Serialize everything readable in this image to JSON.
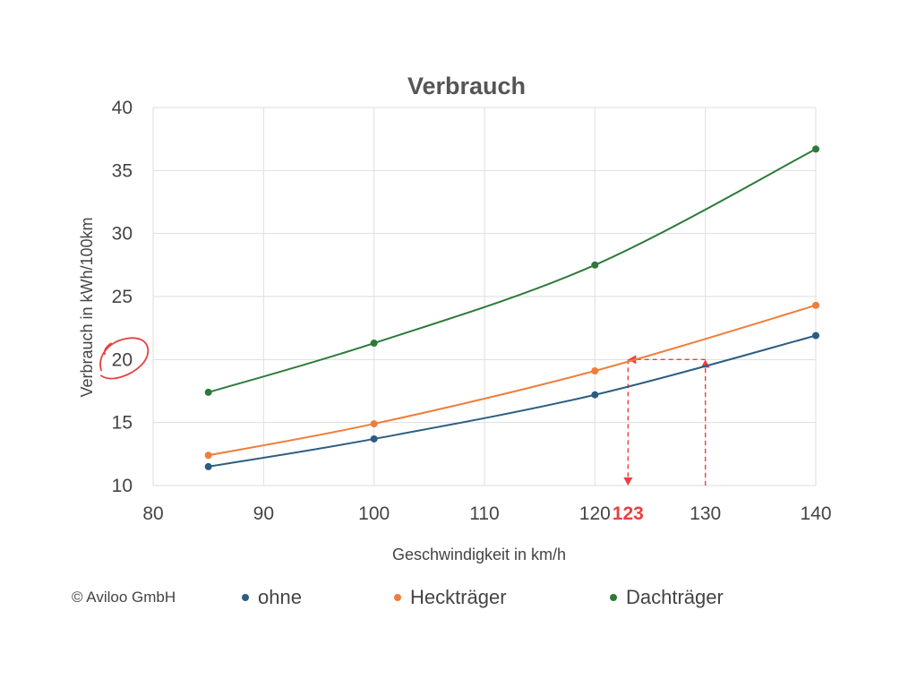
{
  "chart_data": {
    "type": "line",
    "title": "Verbrauch",
    "xlabel": "Geschwindigkeit in km/h",
    "ylabel": "Verbrauch in kWh/100km",
    "xlim": [
      80,
      140
    ],
    "ylim": [
      10,
      40
    ],
    "xticks": [
      80,
      90,
      100,
      110,
      120,
      130,
      140
    ],
    "yticks": [
      10,
      15,
      20,
      25,
      30,
      35,
      40
    ],
    "grid": true,
    "legend_position": "bottom",
    "x": [
      85,
      100,
      120,
      140
    ],
    "series": [
      {
        "name": "ohne",
        "color": "#2b5d82",
        "values": [
          11.5,
          13.7,
          17.2,
          21.9
        ]
      },
      {
        "name": "Heckträger",
        "color": "#ef7d3b",
        "values": [
          12.4,
          14.9,
          19.1,
          24.3
        ]
      },
      {
        "name": "Dachträger",
        "color": "#2c7a39",
        "values": [
          17.4,
          21.3,
          27.5,
          36.7
        ]
      }
    ],
    "annotations": {
      "highlight_y_tick": 20,
      "callout_color": "#e8403f",
      "callout_value_label": "123",
      "callout_y": 20,
      "callout_x_heckträger": 123,
      "callout_x_ohne": 130
    }
  },
  "footer": {
    "copyright": "© Aviloo GmbH"
  }
}
